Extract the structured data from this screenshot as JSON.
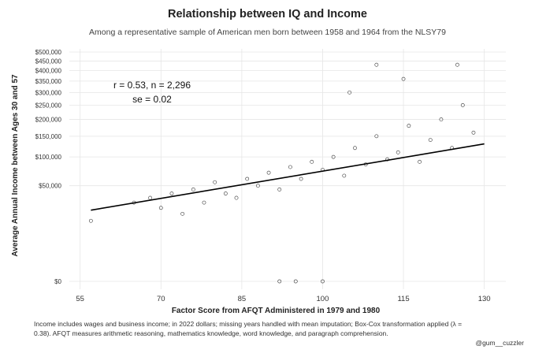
{
  "chart_data": {
    "type": "scatter",
    "title": "Relationship between IQ and Income",
    "subtitle": "Among a representative sample of American men born between 1958 and 1964 from the NLSY79",
    "xlabel": "Factor Score from AFQT Administered in 1979 and 1980",
    "ylabel": "Average Annual Income between Ages 30 and 57",
    "xlim": [
      53,
      134
    ],
    "x_ticks": [
      55,
      70,
      85,
      100,
      115,
      130
    ],
    "x_tick_labels": [
      "55",
      "70",
      "85",
      "100",
      "115",
      "130"
    ],
    "y_scale": "box-cox (lambda = 0.38)",
    "y_ticks": [
      0,
      50000,
      100000,
      150000,
      200000,
      250000,
      300000,
      350000,
      400000,
      450000,
      500000
    ],
    "y_tick_labels": [
      "$0",
      "$50,000",
      "$100,000",
      "$150,000",
      "$200,000",
      "$250,000",
      "$300,000",
      "$350,000",
      "$400,000",
      "$450,000",
      "$500,000"
    ],
    "grid": true,
    "n": 2296,
    "annotations": [
      "r = 0.53, n = 2,296",
      "se = 0.02"
    ],
    "fit_line": {
      "x": [
        57,
        130
      ],
      "y": [
        23000,
        130000
      ]
    },
    "sample_points": {
      "x": [
        57,
        65,
        68,
        70,
        72,
        74,
        76,
        78,
        80,
        82,
        84,
        86,
        88,
        90,
        92,
        94,
        96,
        98,
        100,
        102,
        104,
        106,
        108,
        110,
        112,
        114,
        116,
        118,
        120,
        122,
        124,
        126,
        128,
        105,
        110,
        115,
        125,
        92,
        95,
        100
      ],
      "y": [
        15000,
        30000,
        35000,
        25000,
        40000,
        20000,
        45000,
        30000,
        55000,
        40000,
        35000,
        60000,
        50000,
        70000,
        45000,
        80000,
        60000,
        90000,
        75000,
        100000,
        65000,
        120000,
        85000,
        150000,
        95000,
        110000,
        180000,
        90000,
        140000,
        200000,
        120000,
        250000,
        160000,
        300000,
        430000,
        360000,
        430000,
        0,
        0,
        0
      ]
    }
  },
  "footer": {
    "caption": "Income includes wages and business income; in 2022 dollars; missing years handled with mean imputation; Box-Cox transformation applied (λ = 0.38). AFQT measures arithmetic reasoning, mathematics knowledge, word knowledge, and paragraph comprehension.",
    "credit": "@gum__cuzzler"
  }
}
